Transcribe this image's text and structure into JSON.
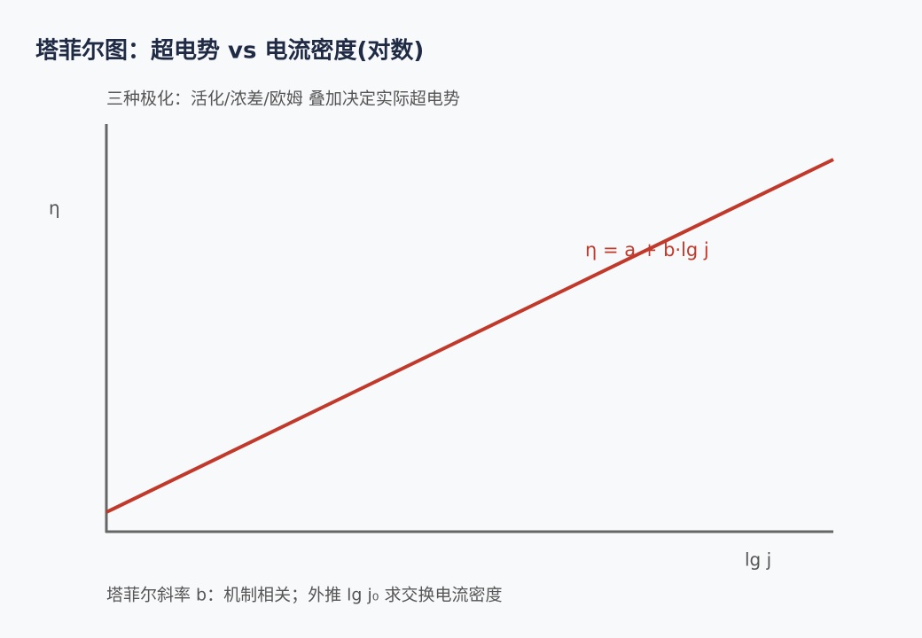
{
  "title": "塔菲尔图：超电势 vs 电流密度(对数)",
  "subtitle": "三种极化：活化/浓差/欧姆 叠加决定实际超电势",
  "y_axis_label": "η",
  "x_axis_label": "lg j",
  "equation": "η = a + b·lg j",
  "footnote": "塔菲尔斜率 b：机制相关；外推 lg j₀ 求交换电流密度"
}
